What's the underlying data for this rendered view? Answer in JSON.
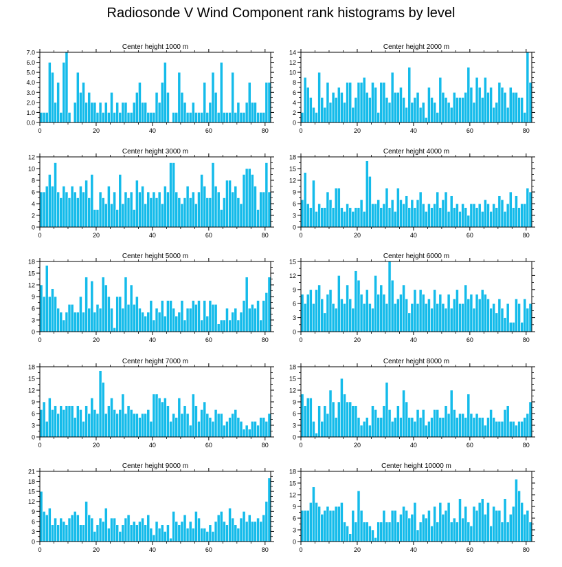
{
  "title": "Radiosonde V Wind Component rank histograms by level",
  "colors": {
    "bar": "#14bbea",
    "bar_edge": "#ffffff",
    "axis": "#000000"
  },
  "chart_data": [
    {
      "type": "bar",
      "title": "Center height 1000 m",
      "xlim": [
        0,
        82
      ],
      "ylim": [
        0,
        7
      ],
      "xticks": [
        0,
        20,
        40,
        60,
        80
      ],
      "yticks": [
        0,
        1,
        2,
        3,
        4,
        5,
        6,
        7
      ],
      "ytick_labels": [
        "0.0",
        "1.0",
        "2.0",
        "3.0",
        "4.0",
        "5.0",
        "6.0",
        "7.0"
      ],
      "values": [
        1,
        1,
        1,
        6,
        5,
        2,
        4,
        1,
        6,
        7,
        1,
        0,
        2,
        5,
        3,
        4,
        2,
        3,
        2,
        2,
        1,
        2,
        1,
        2,
        1,
        3,
        1,
        2,
        1,
        2,
        2,
        1,
        1,
        2,
        3,
        4,
        2,
        2,
        1,
        1,
        1,
        3,
        2,
        4,
        6,
        3,
        0,
        1,
        1,
        5,
        3,
        2,
        1,
        1,
        2,
        1,
        1,
        1,
        4,
        1,
        2,
        5,
        3,
        1,
        6,
        1,
        1,
        1,
        5,
        1,
        2,
        1,
        1,
        2,
        4,
        2,
        2,
        1,
        1,
        1,
        4,
        4
      ]
    },
    {
      "type": "bar",
      "title": "Center height 2000 m",
      "xlim": [
        0,
        82
      ],
      "ylim": [
        0,
        14
      ],
      "xticks": [
        0,
        20,
        40,
        60,
        80
      ],
      "yticks": [
        0,
        2,
        4,
        6,
        8,
        10,
        12,
        14
      ],
      "ytick_labels": [
        "0",
        "2",
        "4",
        "6",
        "8",
        "10",
        "12",
        "14"
      ],
      "values": [
        2,
        9,
        7,
        5,
        3,
        2,
        10,
        5,
        3,
        8,
        4,
        6,
        5,
        7,
        6,
        4,
        8,
        8,
        3,
        5,
        8,
        8,
        9,
        6,
        5,
        8,
        7,
        2,
        8,
        8,
        5,
        4,
        10,
        6,
        6,
        7,
        5,
        3,
        11,
        4,
        5,
        6,
        3,
        4,
        1,
        7,
        5,
        4,
        2,
        9,
        6,
        5,
        4,
        3,
        6,
        5,
        5,
        5,
        6,
        11,
        7,
        4,
        9,
        7,
        5,
        9,
        6,
        7,
        3,
        4,
        8,
        7,
        6,
        3,
        7,
        6,
        6,
        5,
        5,
        2,
        14,
        8
      ]
    },
    {
      "type": "bar",
      "title": "Center height 3000 m",
      "xlim": [
        0,
        82
      ],
      "ylim": [
        0,
        12
      ],
      "xticks": [
        0,
        20,
        40,
        60,
        80
      ],
      "yticks": [
        0,
        2,
        4,
        6,
        8,
        10,
        12
      ],
      "ytick_labels": [
        "0",
        "2",
        "4",
        "6",
        "8",
        "10",
        "12"
      ],
      "values": [
        6,
        6,
        7,
        9,
        7,
        11,
        6,
        5,
        7,
        6,
        5,
        7,
        6,
        5,
        7,
        6,
        8,
        5,
        9,
        3,
        3,
        6,
        5,
        4,
        7,
        4,
        6,
        3,
        9,
        4,
        6,
        5,
        6,
        3,
        8,
        6,
        7,
        4,
        6,
        5,
        6,
        5,
        6,
        4,
        7,
        6,
        11,
        11,
        6,
        5,
        4,
        5,
        7,
        5,
        6,
        4,
        6,
        9,
        7,
        5,
        5,
        11,
        7,
        6,
        3,
        5,
        8,
        8,
        6,
        7,
        5,
        4,
        9,
        10,
        10,
        9,
        7,
        3,
        6,
        6,
        11,
        6
      ]
    },
    {
      "type": "bar",
      "title": "Center height 4000 m",
      "xlim": [
        0,
        82
      ],
      "ylim": [
        0,
        18
      ],
      "xticks": [
        0,
        20,
        40,
        60,
        80
      ],
      "yticks": [
        0,
        3,
        6,
        9,
        12,
        15,
        18
      ],
      "ytick_labels": [
        "0",
        "3",
        "6",
        "9",
        "12",
        "15",
        "18"
      ],
      "values": [
        7,
        14,
        6,
        5,
        12,
        4,
        6,
        5,
        5,
        9,
        7,
        5,
        10,
        10,
        5,
        4,
        6,
        5,
        4,
        5,
        5,
        7,
        4,
        17,
        13,
        6,
        6,
        7,
        5,
        6,
        10,
        5,
        7,
        4,
        10,
        7,
        6,
        8,
        5,
        7,
        5,
        7,
        9,
        6,
        4,
        6,
        5,
        6,
        9,
        5,
        7,
        9,
        4,
        8,
        5,
        6,
        4,
        6,
        5,
        3,
        6,
        6,
        5,
        6,
        4,
        7,
        6,
        4,
        6,
        5,
        8,
        7,
        4,
        6,
        9,
        5,
        8,
        5,
        6,
        6,
        10,
        9
      ]
    },
    {
      "type": "bar",
      "title": "Center height 5000 m",
      "xlim": [
        0,
        82
      ],
      "ylim": [
        0,
        18
      ],
      "xticks": [
        0,
        20,
        40,
        60,
        80
      ],
      "yticks": [
        0,
        3,
        6,
        9,
        12,
        15,
        18
      ],
      "ytick_labels": [
        "0",
        "3",
        "6",
        "9",
        "12",
        "15",
        "18"
      ],
      "values": [
        12,
        9,
        17,
        9,
        11,
        9,
        6,
        5,
        3,
        5,
        7,
        7,
        5,
        5,
        9,
        5,
        14,
        6,
        13,
        5,
        7,
        6,
        14,
        12,
        9,
        6,
        1,
        9,
        9,
        6,
        14,
        7,
        12,
        7,
        9,
        6,
        5,
        4,
        5,
        8,
        3,
        6,
        5,
        8,
        4,
        8,
        8,
        6,
        4,
        5,
        8,
        3,
        6,
        6,
        8,
        7,
        8,
        3,
        8,
        4,
        8,
        7,
        7,
        2,
        3,
        3,
        6,
        3,
        5,
        6,
        3,
        5,
        8,
        14,
        6,
        7,
        6,
        8,
        3,
        8,
        10,
        14
      ]
    },
    {
      "type": "bar",
      "title": "Center height 6000 m",
      "xlim": [
        0,
        82
      ],
      "ylim": [
        0,
        15
      ],
      "xticks": [
        0,
        20,
        40,
        60,
        80
      ],
      "yticks": [
        0,
        3,
        6,
        9,
        12,
        15
      ],
      "ytick_labels": [
        "0",
        "3",
        "6",
        "9",
        "12",
        "15"
      ],
      "values": [
        8,
        6,
        8,
        9,
        6,
        9,
        10,
        7,
        4,
        8,
        9,
        6,
        5,
        12,
        7,
        6,
        10,
        7,
        5,
        13,
        11,
        8,
        6,
        9,
        6,
        5,
        12,
        8,
        10,
        8,
        6,
        15,
        11,
        6,
        7,
        8,
        10,
        7,
        4,
        6,
        9,
        6,
        9,
        8,
        6,
        7,
        5,
        9,
        6,
        8,
        6,
        5,
        8,
        5,
        7,
        9,
        6,
        6,
        10,
        7,
        8,
        5,
        8,
        7,
        9,
        8,
        7,
        5,
        6,
        4,
        7,
        5,
        3,
        6,
        2,
        2,
        7,
        6,
        2,
        7,
        5,
        6
      ]
    },
    {
      "type": "bar",
      "title": "Center height 7000 m",
      "xlim": [
        0,
        82
      ],
      "ylim": [
        0,
        18
      ],
      "xticks": [
        0,
        20,
        40,
        60,
        80
      ],
      "yticks": [
        0,
        3,
        6,
        9,
        12,
        15,
        18
      ],
      "ytick_labels": [
        "0",
        "3",
        "6",
        "9",
        "12",
        "15",
        "18"
      ],
      "values": [
        7,
        9,
        4,
        10,
        7,
        8,
        6,
        8,
        7,
        8,
        8,
        8,
        5,
        8,
        7,
        4,
        8,
        6,
        10,
        7,
        6,
        17,
        14,
        6,
        8,
        10,
        7,
        6,
        7,
        11,
        6,
        8,
        7,
        6,
        6,
        5,
        6,
        6,
        7,
        4,
        11,
        11,
        10,
        9,
        10,
        8,
        4,
        6,
        5,
        10,
        6,
        8,
        6,
        3,
        11,
        8,
        4,
        7,
        9,
        6,
        5,
        4,
        7,
        6,
        6,
        3,
        4,
        5,
        6,
        7,
        5,
        4,
        2,
        3,
        2,
        4,
        4,
        3,
        5,
        5,
        4,
        6
      ]
    },
    {
      "type": "bar",
      "title": "Center height 8000 m",
      "xlim": [
        0,
        82
      ],
      "ylim": [
        0,
        18
      ],
      "xticks": [
        0,
        20,
        40,
        60,
        80
      ],
      "yticks": [
        0,
        3,
        6,
        9,
        12,
        15,
        18
      ],
      "ytick_labels": [
        "0",
        "3",
        "6",
        "9",
        "12",
        "15",
        "18"
      ],
      "values": [
        11,
        8,
        10,
        10,
        4,
        1,
        8,
        4,
        8,
        6,
        12,
        9,
        5,
        9,
        15,
        11,
        9,
        9,
        8,
        8,
        5,
        3,
        4,
        5,
        3,
        8,
        7,
        5,
        5,
        8,
        14,
        7,
        4,
        5,
        8,
        5,
        12,
        9,
        5,
        5,
        4,
        7,
        5,
        7,
        3,
        4,
        5,
        7,
        7,
        5,
        5,
        8,
        6,
        12,
        7,
        5,
        6,
        6,
        5,
        11,
        6,
        5,
        6,
        5,
        5,
        3,
        5,
        7,
        5,
        4,
        4,
        4,
        7,
        8,
        4,
        4,
        3,
        4,
        4,
        5,
        6,
        9
      ]
    },
    {
      "type": "bar",
      "title": "Center height 9000 m",
      "xlim": [
        0,
        82
      ],
      "ylim": [
        0,
        21
      ],
      "xticks": [
        0,
        20,
        40,
        60,
        80
      ],
      "yticks": [
        0,
        3,
        6,
        9,
        12,
        15,
        18,
        21
      ],
      "ytick_labels": [
        "0",
        "3",
        "6",
        "9",
        "12",
        "15",
        "18",
        "21"
      ],
      "values": [
        15,
        9,
        8,
        10,
        5,
        7,
        5,
        7,
        6,
        5,
        7,
        8,
        9,
        8,
        5,
        5,
        12,
        8,
        7,
        3,
        5,
        7,
        6,
        10,
        4,
        7,
        7,
        5,
        3,
        5,
        7,
        8,
        5,
        6,
        5,
        6,
        7,
        5,
        8,
        4,
        2,
        6,
        4,
        5,
        3,
        5,
        1,
        9,
        6,
        5,
        6,
        8,
        4,
        6,
        4,
        9,
        7,
        4,
        4,
        3,
        5,
        3,
        6,
        8,
        9,
        6,
        5,
        10,
        7,
        5,
        4,
        7,
        9,
        6,
        8,
        6,
        6,
        7,
        6,
        8,
        12,
        19
      ]
    },
    {
      "type": "bar",
      "title": "Center height 10000 m",
      "xlim": [
        0,
        82
      ],
      "ylim": [
        0,
        18
      ],
      "xticks": [
        0,
        20,
        40,
        60,
        80
      ],
      "yticks": [
        0,
        3,
        6,
        9,
        12,
        15,
        18
      ],
      "ytick_labels": [
        "0",
        "3",
        "6",
        "9",
        "12",
        "15",
        "18"
      ],
      "values": [
        8,
        8,
        8,
        10,
        14,
        10,
        9,
        7,
        8,
        9,
        8,
        8,
        9,
        9,
        10,
        5,
        4,
        2,
        8,
        5,
        13,
        8,
        5,
        5,
        4,
        3,
        1,
        5,
        5,
        8,
        5,
        5,
        8,
        8,
        5,
        7,
        9,
        8,
        6,
        7,
        10,
        3,
        5,
        7,
        6,
        8,
        4,
        9,
        5,
        10,
        7,
        8,
        10,
        5,
        6,
        5,
        11,
        6,
        9,
        5,
        4,
        9,
        8,
        10,
        11,
        7,
        10,
        4,
        9,
        8,
        8,
        5,
        11,
        5,
        7,
        9,
        16,
        13,
        10,
        7,
        8,
        5
      ]
    }
  ]
}
